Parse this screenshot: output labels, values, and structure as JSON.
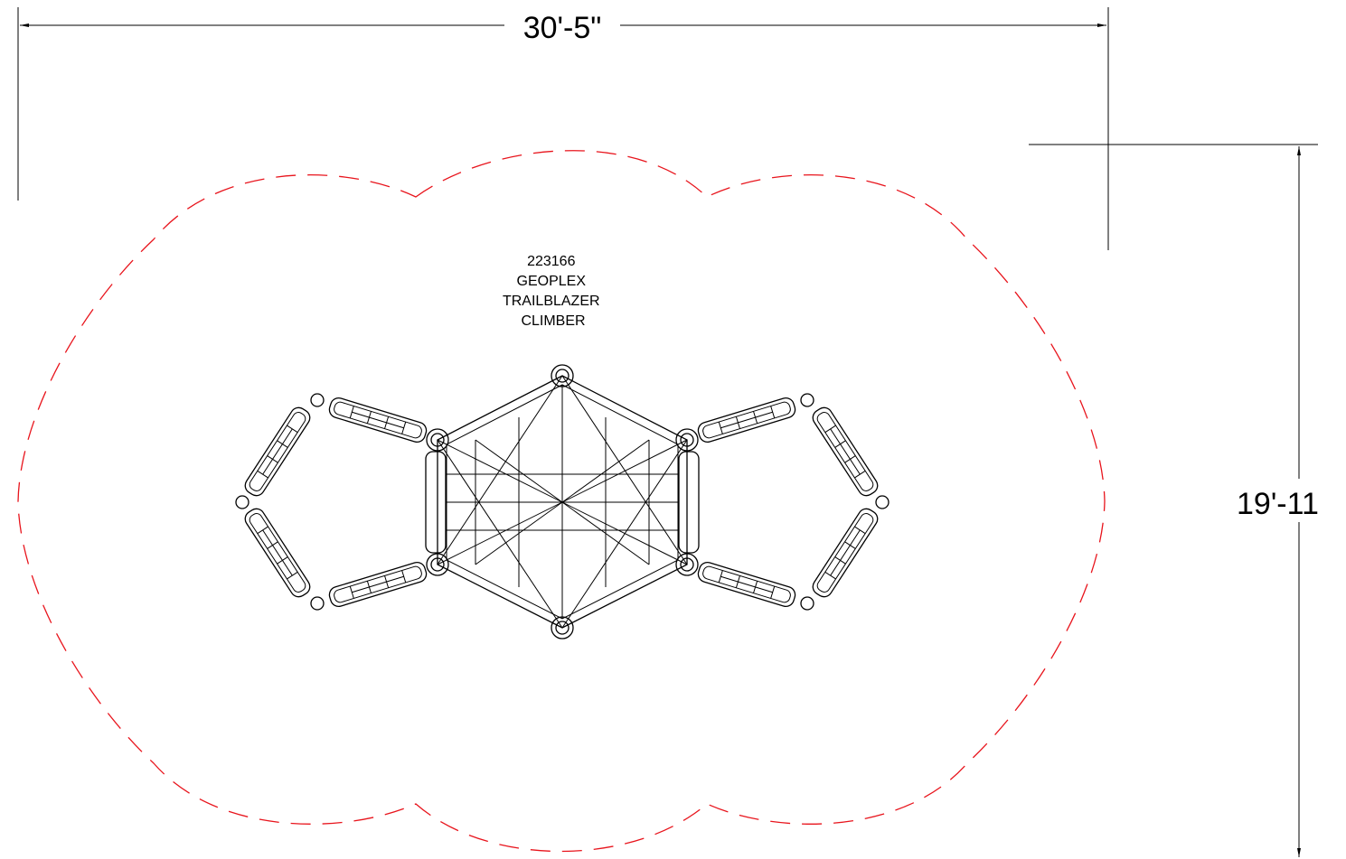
{
  "drawing": {
    "width_dimension": "30'-5\"",
    "height_dimension": "19'-11",
    "product_label": {
      "lines": [
        "223166",
        "GEOPLEX",
        "TRAILBLAZER",
        "CLIMBER"
      ]
    },
    "colors": {
      "linework": "#000000",
      "use_zone": "#e8141c",
      "background": "#ffffff"
    }
  }
}
